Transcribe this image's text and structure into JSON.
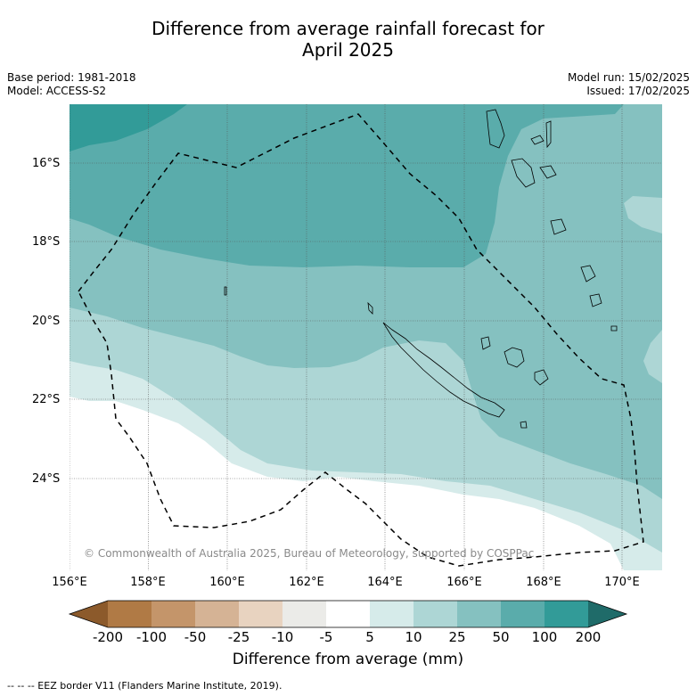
{
  "title_line1": "Difference from average rainfall forecast for",
  "title_line2": "April 2025",
  "base_period": "Base period: 1981-2018",
  "model": "Model: ACCESS-S2",
  "model_run": "Model run: 15/02/2025",
  "issued": "Issued: 17/02/2025",
  "copyright": "© Commonwealth of Australia 2025, Bureau of Meteorology, supported by COSPPac",
  "footnote": "--  --  -- EEZ border V11 (Flanders Marine Institute, 2019).",
  "colors": {
    "lt_neg200": "#8c5a2b",
    "n200_100": "#b07a45",
    "n100_50": "#c4956a",
    "n50_25": "#d5b395",
    "n25_10": "#e8d3c0",
    "n10_5": "#ebebe8",
    "n5_5": "#ffffff",
    "p5_10": "#d6ebea",
    "p10_25": "#add6d5",
    "p25_50": "#85c1c0",
    "p50_100": "#5aacab",
    "p100_200": "#329b98",
    "gt_200": "#1f6b69"
  },
  "map": {
    "lon_range": [
      156,
      171
    ],
    "lat_range": [
      -26.1,
      -14.7
    ],
    "lat_ticks": [
      "16°S",
      "18°S",
      "20°S",
      "22°S",
      "24°S"
    ],
    "lon_ticks": [
      "156°E",
      "158°E",
      "160°E",
      "162°E",
      "164°E",
      "166°E",
      "168°E",
      "170°E"
    ],
    "gridlines": true,
    "layers": [
      "rainfall-anomaly-fill",
      "coastlines",
      "eez-border"
    ]
  },
  "colorbar": {
    "labels": [
      "-200",
      "-100",
      "-50",
      "-25",
      "-10",
      "-5",
      "5",
      "10",
      "25",
      "50",
      "100",
      "200"
    ],
    "title": "Difference from average (mm)",
    "extend": "both"
  }
}
